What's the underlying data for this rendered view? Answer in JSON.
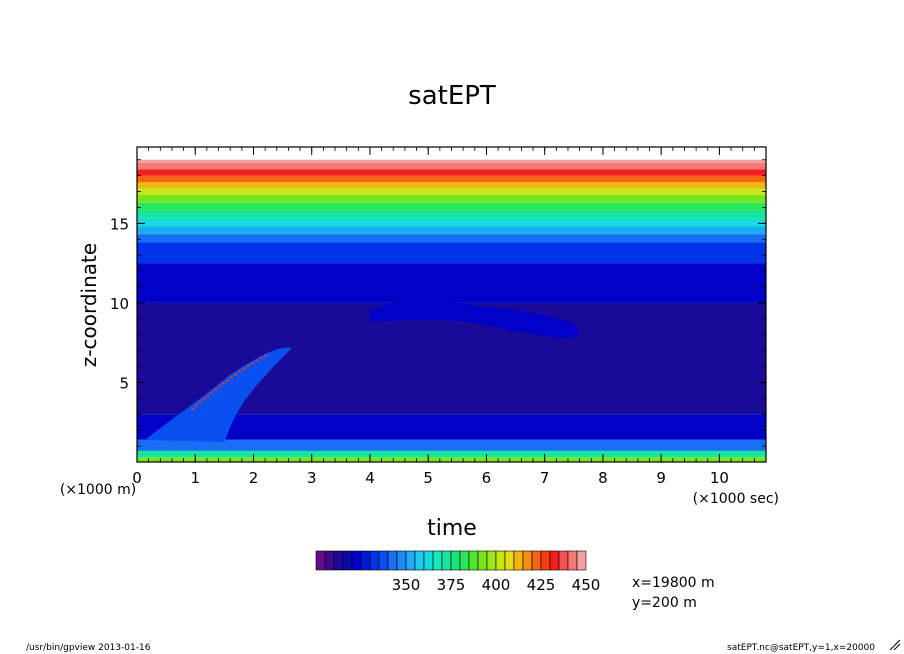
{
  "chart_data": {
    "type": "heatmap",
    "title": "satEPT",
    "xlabel": "time",
    "ylabel": "z-coordinate",
    "x_unit_label": "(×1000 sec)",
    "y_unit_label": "(×1000 m)",
    "xlim": [
      0,
      10.8
    ],
    "ylim": [
      0,
      19.8
    ],
    "x_ticks": [
      "0",
      "1",
      "2",
      "3",
      "4",
      "5",
      "6",
      "7",
      "8",
      "9",
      "10"
    ],
    "y_ticks": [
      "5",
      "10",
      "15"
    ],
    "colorbar": {
      "levels_min": 300,
      "levels_max": 450,
      "interval": 5,
      "tick_labels": [
        "350",
        "375",
        "400",
        "425",
        "450"
      ],
      "colors": [
        "#6a0a8c",
        "#3a0a8c",
        "#1a0a9a",
        "#0a0aaa",
        "#0000c8",
        "#0018dc",
        "#0032ec",
        "#0a50f0",
        "#1a6ef5",
        "#1e8cf5",
        "#1eaaf5",
        "#1ec8f0",
        "#14dcdc",
        "#14e6be",
        "#14e6a0",
        "#14e67d",
        "#2ae65a",
        "#50e632",
        "#78e61e",
        "#a0e614",
        "#c8e614",
        "#e6dc14",
        "#f5b414",
        "#f58c14",
        "#f56414",
        "#f53c14",
        "#f51e1e",
        "#f55050",
        "#f57878",
        "#f5a0a0"
      ]
    },
    "bands": [
      {
        "z": [
          0.0,
          0.3
        ],
        "value": 392
      },
      {
        "z": [
          0.3,
          0.7
        ],
        "value": 372
      },
      {
        "z": [
          0.7,
          1.4
        ],
        "value": 342
      },
      {
        "z": [
          1.4,
          3.0
        ],
        "value": 322
      },
      {
        "z": [
          3.0,
          10.0
        ],
        "value": 312
      },
      {
        "z": [
          10.0,
          12.5
        ],
        "value": 322
      },
      {
        "z": [
          12.5,
          13.8
        ],
        "value": 332
      },
      {
        "z": [
          13.8,
          14.3
        ],
        "value": 342
      },
      {
        "z": [
          14.3,
          14.8
        ],
        "value": 352
      },
      {
        "z": [
          14.8,
          15.3
        ],
        "value": 362
      },
      {
        "z": [
          15.3,
          15.8
        ],
        "value": 372
      },
      {
        "z": [
          15.8,
          16.3
        ],
        "value": 382
      },
      {
        "z": [
          16.3,
          16.8
        ],
        "value": 392
      },
      {
        "z": [
          16.8,
          17.2
        ],
        "value": 402
      },
      {
        "z": [
          17.2,
          17.6
        ],
        "value": 412
      },
      {
        "z": [
          17.6,
          18.0
        ],
        "value": 422
      },
      {
        "z": [
          18.0,
          18.4
        ],
        "value": 432
      },
      {
        "z": [
          18.4,
          18.8
        ],
        "value": 442
      },
      {
        "z": [
          18.8,
          19.0
        ],
        "value": 448
      }
    ]
  },
  "annotations": {
    "x_info": "x=19800 m",
    "y_info": "y=200 m"
  },
  "footer": {
    "left": "/usr/bin/gpview  2013-01-16",
    "right": "satEPT.nc@satEPT,y=1,x=20000"
  }
}
